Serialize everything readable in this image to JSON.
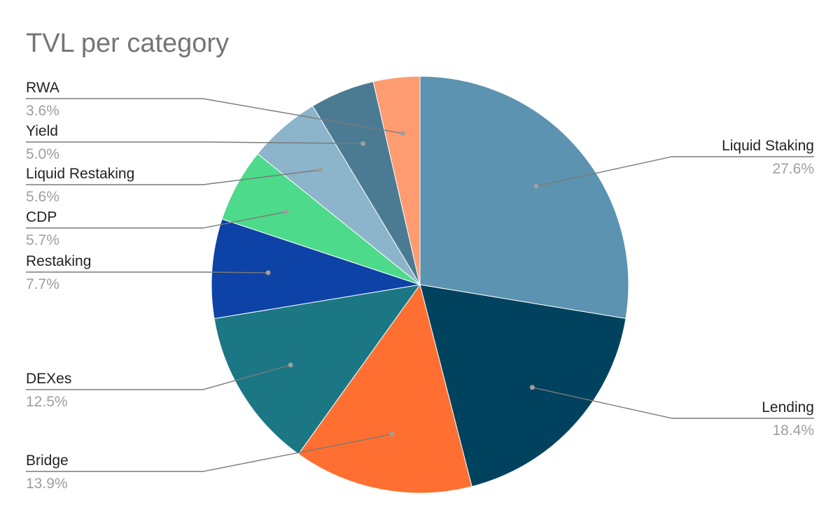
{
  "chart_data": {
    "type": "pie",
    "title": "TVL per category",
    "start": "top",
    "direction": "clockwise",
    "legend": "labels beside slices with leader lines",
    "slices": [
      {
        "label": "Liquid Staking",
        "value": 27.6,
        "display": "27.6%",
        "color": "#5b93b0"
      },
      {
        "label": "Lending",
        "value": 18.4,
        "display": "18.4%",
        "color": "#01425f"
      },
      {
        "label": "Bridge",
        "value": 13.9,
        "display": "13.9%",
        "color": "#ff6f31"
      },
      {
        "label": "DEXes",
        "value": 12.5,
        "display": "12.5%",
        "color": "#1c7785"
      },
      {
        "label": "Restaking",
        "value": 7.7,
        "display": "7.7%",
        "color": "#0d42a6"
      },
      {
        "label": "CDP",
        "value": 5.7,
        "display": "5.7%",
        "color": "#4dda8a"
      },
      {
        "label": "Liquid Restaking",
        "value": 5.6,
        "display": "5.6%",
        "color": "#8cb4ca"
      },
      {
        "label": "Yield",
        "value": 5.0,
        "display": "5.0%",
        "color": "#4b7b92"
      },
      {
        "label": "RWA",
        "value": 3.6,
        "display": "3.6%",
        "color": "#ff9b71"
      }
    ]
  }
}
